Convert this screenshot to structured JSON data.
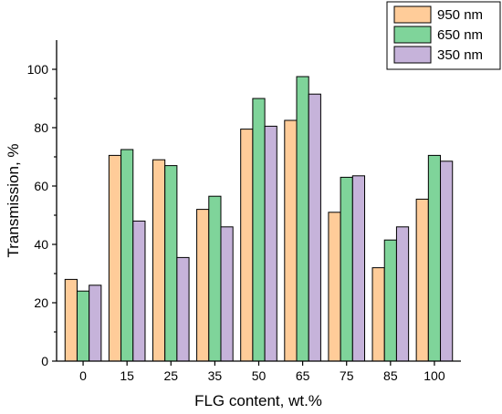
{
  "chart_data": {
    "type": "bar",
    "xlabel": "FLG content, wt.%",
    "ylabel": "Transmission, %",
    "ylim": [
      0,
      110
    ],
    "yticks": [
      0,
      20,
      40,
      60,
      80,
      100
    ],
    "categories": [
      "0",
      "15",
      "25",
      "35",
      "50",
      "65",
      "75",
      "85",
      "100"
    ],
    "series": [
      {
        "name": "950 nm",
        "color": "#FFCC99",
        "values": [
          28,
          70.5,
          69,
          52,
          79.5,
          82.5,
          51,
          32,
          55.5
        ]
      },
      {
        "name": "650 nm",
        "color": "#7FD49A",
        "values": [
          24,
          72.5,
          67,
          56.5,
          90,
          97.5,
          63,
          41.5,
          70.5
        ]
      },
      {
        "name": "350 nm",
        "color": "#C6B3DA",
        "values": [
          26,
          48,
          35.5,
          46,
          80.5,
          91.5,
          63.5,
          46,
          68.5
        ]
      }
    ],
    "legend": "top-right",
    "grid": false
  }
}
